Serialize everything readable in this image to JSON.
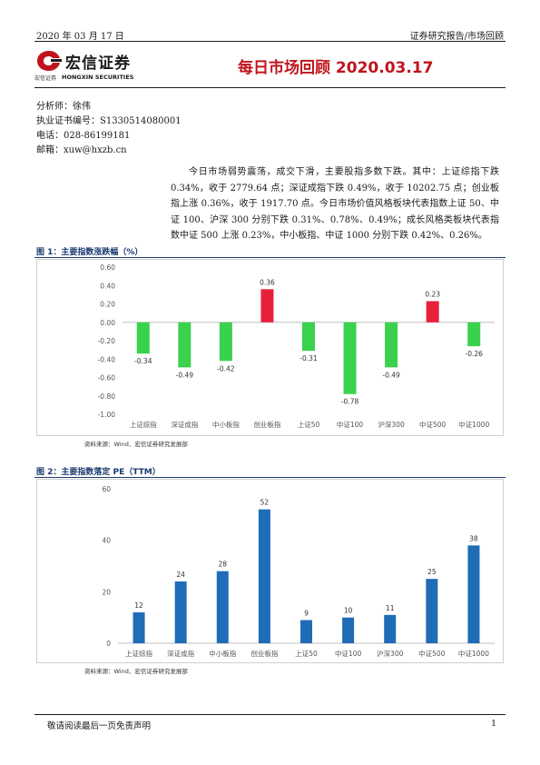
{
  "header": {
    "date": "2020 年 03 月 17 日",
    "category": "证券研究报告/市场回顾"
  },
  "logo": {
    "name_cn": "宏信证券",
    "sub_cn": "宏信证券",
    "sub_en": "HONGXIN SECURITIES"
  },
  "title": "每日市场回顾 2020.03.17",
  "analyst": {
    "name_line": "分析师：徐伟",
    "cert_line": "执业证书编号：S1330514080001",
    "phone_line": "电话：028-86199181",
    "email_line": "邮箱：xuw@hxzb.cn"
  },
  "summary": "今日市场弱势震荡，成交下滑，主要股指多数下跌。其中：上证综指下跌 0.34%，收于 2779.64 点；深证成指下跌 0.49%，收于 10202.75 点；创业板指上涨 0.36%，收于 1917.70 点。今日市场价值风格板块代表指数上证 50、中证 100、沪深 300 分别下跌 0.31%、0.78%、0.49%；成长风格类板块代表指数中证 500 上涨 0.23%，中小板指、中证 1000 分别下跌 0.42%、0.26%。",
  "colors": {
    "up": "#e8213a",
    "down": "#3ad14d",
    "pe": "#1f6cb7",
    "title_red": "#c0141c",
    "fig_blue": "#1a3a6e"
  },
  "chart_data": [
    {
      "type": "bar",
      "title": "图 1：主要指数涨跌幅（%）",
      "categories": [
        "上证综指",
        "深证成指",
        "中小板指",
        "创业板指",
        "上证50",
        "中证100",
        "沪深300",
        "中证500",
        "中证1000"
      ],
      "values": [
        -0.34,
        -0.49,
        -0.42,
        0.36,
        -0.31,
        -0.78,
        -0.49,
        0.23,
        -0.26
      ],
      "data_labels": [
        "-0.34",
        "-0.49",
        "-0.42",
        "0.36",
        "-0.31",
        "-0.78",
        "-0.49",
        "0.23",
        "-0.26"
      ],
      "ylim": [
        -1.0,
        0.6
      ],
      "yticks": [
        "0.60",
        "0.40",
        "0.20",
        "0.00",
        "-0.20",
        "-0.40",
        "-0.60",
        "-0.80",
        "-1.00"
      ],
      "source": "资料来源：Wind、宏信证券研究发展部",
      "grid": false
    },
    {
      "type": "bar",
      "title": "图 2：主要指数落定 PE（TTM）",
      "categories": [
        "上证综指",
        "深证成指",
        "中小板指",
        "创业板指",
        "上证50",
        "中证100",
        "沪深300",
        "中证500",
        "中证1000"
      ],
      "values": [
        12,
        24,
        28,
        52,
        9,
        10,
        11,
        25,
        38
      ],
      "data_labels": [
        "12",
        "24",
        "28",
        "52",
        "9",
        "10",
        "11",
        "25",
        "38"
      ],
      "ylim": [
        0,
        60
      ],
      "yticks": [
        "60",
        "40",
        "20",
        "0"
      ],
      "source": "资料来源：Wind、宏信证券研究发展部",
      "grid": false
    }
  ],
  "footer": {
    "disclaimer": "敬请阅读最后一页免责声明",
    "page": "1"
  }
}
